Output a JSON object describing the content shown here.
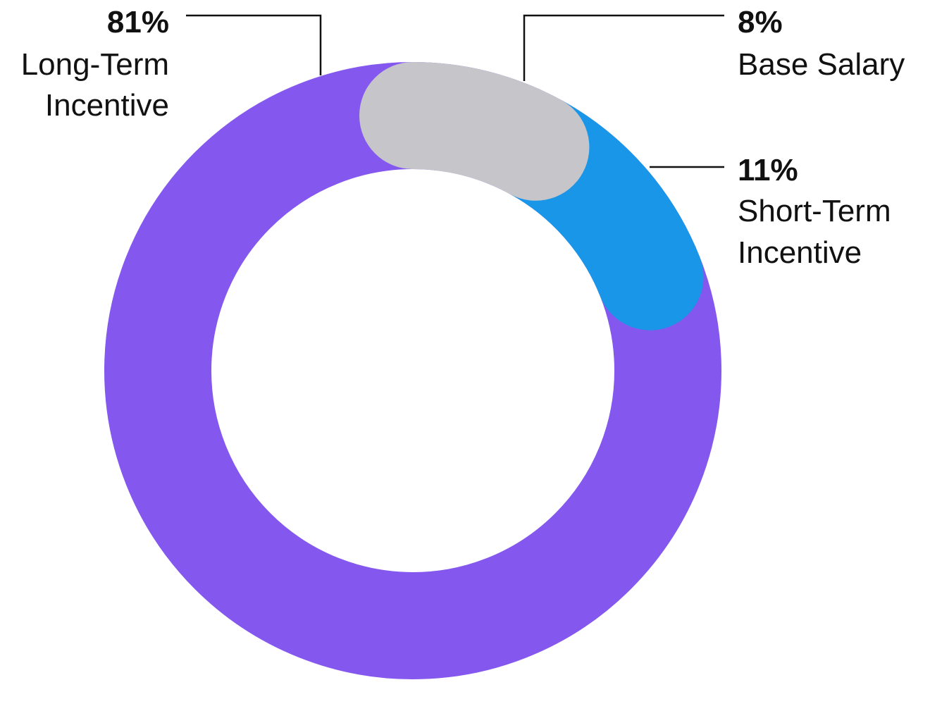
{
  "chart_data": {
    "type": "pie",
    "variant": "donut",
    "title": "",
    "categories": [
      "Base Salary",
      "Short-Term Incentive",
      "Long-Term Incentive"
    ],
    "values": [
      8,
      11,
      81
    ],
    "unit": "%",
    "value_labels": [
      "8%",
      "11%",
      "81%"
    ],
    "colors": [
      "#c6c5ca",
      "#1a96e8",
      "#8457ee"
    ],
    "start_angle_deg": 0,
    "direction": "clockwise",
    "rounded_segment_ends": true,
    "legend": "none",
    "labels": {
      "base_salary": {
        "percent": "8%",
        "line1": "Base Salary",
        "line2": ""
      },
      "short_term": {
        "percent": "11%",
        "line1": "Short-Term",
        "line2": "Incentive"
      },
      "long_term": {
        "percent": "81%",
        "line1": "Long-Term",
        "line2": "Incentive"
      }
    }
  }
}
